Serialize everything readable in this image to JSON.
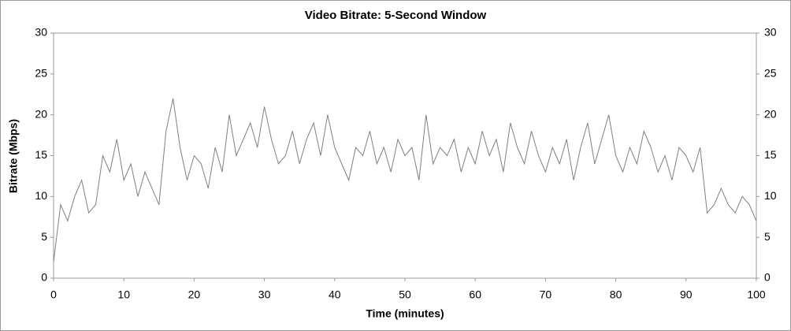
{
  "chart_data": {
    "type": "line",
    "title": "Video Bitrate: 5-Second Window",
    "x_label": "Time (minutes)",
    "y_label": "Bitrate (Mbps)",
    "x": [
      0,
      1,
      2,
      3,
      4,
      5,
      6,
      7,
      8,
      9,
      10,
      11,
      12,
      13,
      14,
      15,
      16,
      17,
      18,
      19,
      20,
      21,
      22,
      23,
      24,
      25,
      26,
      27,
      28,
      29,
      30,
      31,
      32,
      33,
      34,
      35,
      36,
      37,
      38,
      39,
      40,
      41,
      42,
      43,
      44,
      45,
      46,
      47,
      48,
      49,
      50,
      51,
      52,
      53,
      54,
      55,
      56,
      57,
      58,
      59,
      60,
      61,
      62,
      63,
      64,
      65,
      66,
      67,
      68,
      69,
      70,
      71,
      72,
      73,
      74,
      75,
      76,
      77,
      78,
      79,
      80,
      81,
      82,
      83,
      84,
      85,
      86,
      87,
      88,
      89,
      90,
      91,
      92,
      93,
      94,
      95,
      96,
      97,
      98,
      99,
      100
    ],
    "series": [
      {
        "name": "Bitrate",
        "color": "#808080",
        "values": [
          2,
          9,
          7,
          10,
          12,
          8,
          9,
          15,
          13,
          17,
          12,
          14,
          10,
          13,
          11,
          9,
          18,
          22,
          16,
          12,
          15,
          14,
          11,
          16,
          13,
          20,
          15,
          17,
          19,
          16,
          21,
          17,
          14,
          15,
          18,
          14,
          17,
          19,
          15,
          20,
          16,
          14,
          12,
          16,
          15,
          18,
          14,
          16,
          13,
          17,
          15,
          16,
          12,
          20,
          14,
          16,
          15,
          17,
          13,
          16,
          14,
          18,
          15,
          17,
          13,
          19,
          16,
          14,
          18,
          15,
          13,
          16,
          14,
          17,
          12,
          16,
          19,
          14,
          17,
          20,
          15,
          13,
          16,
          14,
          18,
          16,
          13,
          15,
          12,
          16,
          15,
          13,
          16,
          8,
          9,
          11,
          9,
          8,
          10,
          9,
          7
        ]
      }
    ],
    "xlim": [
      0,
      100
    ],
    "xticks": [
      0,
      10,
      20,
      30,
      40,
      50,
      60,
      70,
      80,
      90,
      100
    ],
    "ylim": [
      0,
      30
    ],
    "yticks": [
      0,
      5,
      10,
      15,
      20,
      25,
      30
    ],
    "y2lim": [
      0,
      30
    ],
    "y2ticks": [
      0,
      5,
      10,
      15,
      20,
      25,
      30
    ]
  }
}
